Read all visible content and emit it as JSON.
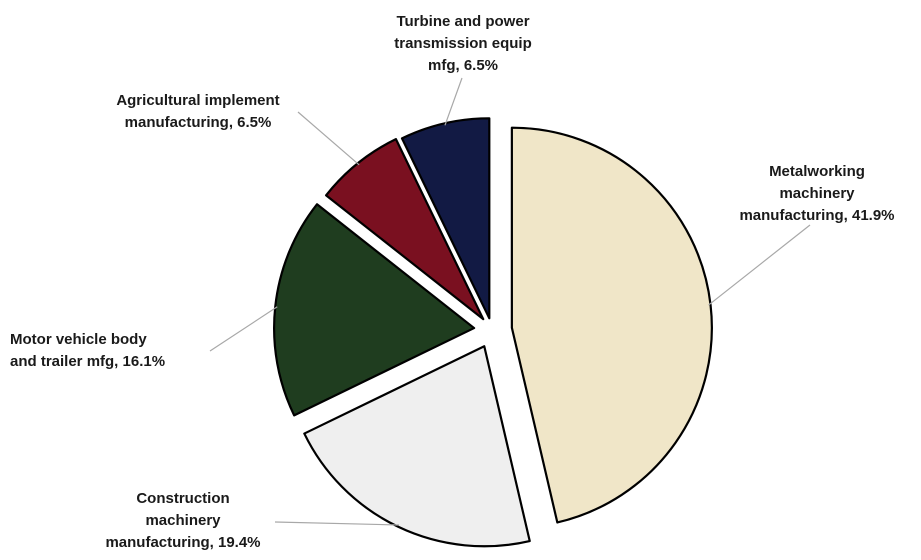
{
  "chart_data": {
    "type": "pie",
    "title": "",
    "legend": "none",
    "exploded": true,
    "slices": [
      {
        "name": "Metalworking machinery manufacturing",
        "value": 41.9,
        "color": "#f0e6c8",
        "label_lines": [
          "Metalworking",
          "machinery",
          "manufacturing, 41.9%"
        ]
      },
      {
        "name": "Construction machinery manufacturing",
        "value": 19.4,
        "color": "#efefef",
        "label_lines": [
          "Construction",
          "machinery",
          "manufacturing, 19.4%"
        ]
      },
      {
        "name": "Motor vehicle body and trailer mfg",
        "value": 16.1,
        "color": "#1f3d1f",
        "label_lines": [
          "Motor vehicle body",
          "and trailer mfg, 16.1%"
        ]
      },
      {
        "name": "Agricultural implement manufacturing",
        "value": 6.5,
        "color": "#7a1020",
        "label_lines": [
          "Agricultural implement",
          "manufacturing, 6.5%"
        ]
      },
      {
        "name": "Turbine and power transmission equip mfg",
        "value": 6.5,
        "color": "#121a44",
        "label_lines": [
          "Turbine and power",
          "transmission equip",
          "mfg, 6.5%"
        ]
      }
    ]
  }
}
